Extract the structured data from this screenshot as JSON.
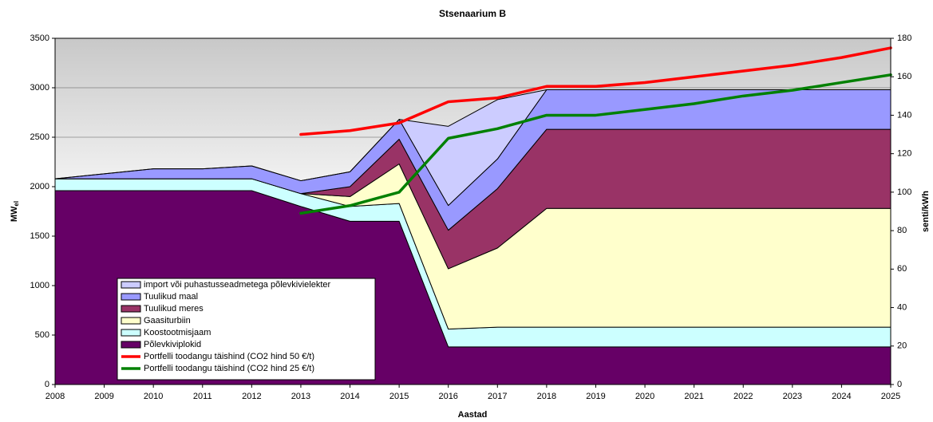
{
  "chart_data": {
    "type": "area",
    "title": "Stsenaarium B",
    "x_label": "Aastad",
    "y_label": "MW",
    "y_label_subscript": "el",
    "y2_label": "senti/kWh",
    "x": [
      2008,
      2009,
      2010,
      2011,
      2012,
      2013,
      2014,
      2015,
      2016,
      2017,
      2018,
      2019,
      2020,
      2021,
      2022,
      2023,
      2024,
      2025
    ],
    "xlim": [
      2008,
      2025
    ],
    "xticks": [
      2008,
      2009,
      2010,
      2011,
      2012,
      2013,
      2014,
      2015,
      2016,
      2017,
      2018,
      2019,
      2020,
      2021,
      2022,
      2023,
      2024,
      2025
    ],
    "ylim": [
      0,
      3500
    ],
    "yticks": [
      0,
      500,
      1000,
      1500,
      2000,
      2500,
      3000,
      3500
    ],
    "y2lim": [
      0,
      180
    ],
    "y2ticks": [
      0,
      20,
      40,
      60,
      80,
      100,
      120,
      140,
      160,
      180
    ],
    "grid": true,
    "series": [
      {
        "name": "Põlevkiviplokid",
        "color": "#660066",
        "values": [
          1960,
          1960,
          1960,
          1960,
          1960,
          1800,
          1650,
          1650,
          380,
          380,
          380,
          380,
          380,
          380,
          380,
          380,
          380,
          380
        ]
      },
      {
        "name": "Koostootmisjaam",
        "color": "#ccffff",
        "values": [
          120,
          120,
          120,
          120,
          120,
          130,
          150,
          180,
          180,
          200,
          200,
          200,
          200,
          200,
          200,
          200,
          200,
          200
        ]
      },
      {
        "name": "Gaasiturbiin",
        "color": "#ffffcc",
        "values": [
          0,
          0,
          0,
          0,
          0,
          0,
          100,
          400,
          610,
          800,
          1200,
          1200,
          1200,
          1200,
          1200,
          1200,
          1200,
          1200
        ]
      },
      {
        "name": "Tuulikud meres",
        "color": "#993366",
        "values": [
          0,
          0,
          0,
          0,
          0,
          0,
          100,
          250,
          390,
          600,
          800,
          800,
          800,
          800,
          800,
          800,
          800,
          800
        ]
      },
      {
        "name": "Tuulikud maal",
        "color": "#9999ff",
        "values": [
          0,
          50,
          100,
          100,
          130,
          130,
          150,
          200,
          250,
          300,
          400,
          400,
          400,
          400,
          400,
          400,
          400,
          400
        ]
      },
      {
        "name": "import või puhastusseadmetega põlevkivielekter",
        "color": "#ccccff",
        "values": [
          0,
          0,
          0,
          0,
          0,
          0,
          0,
          0,
          800,
          600,
          0,
          0,
          0,
          0,
          0,
          0,
          0,
          0
        ]
      },
      {
        "name": "Portfelli toodangu täishind (CO2 hind 50 €/t)",
        "color": "#ff0000",
        "type": "line",
        "axis": "y2",
        "values": [
          null,
          null,
          null,
          null,
          null,
          130,
          132,
          136,
          147,
          149,
          155,
          155,
          157,
          160,
          163,
          166,
          170,
          175
        ]
      },
      {
        "name": "Portfelli toodangu täishind (CO2 hind 25 €/t)",
        "color": "#008000",
        "type": "line",
        "axis": "y2",
        "values": [
          null,
          null,
          null,
          null,
          null,
          89,
          93,
          100,
          128,
          133,
          140,
          140,
          143,
          146,
          150,
          153,
          157,
          161
        ]
      }
    ]
  }
}
